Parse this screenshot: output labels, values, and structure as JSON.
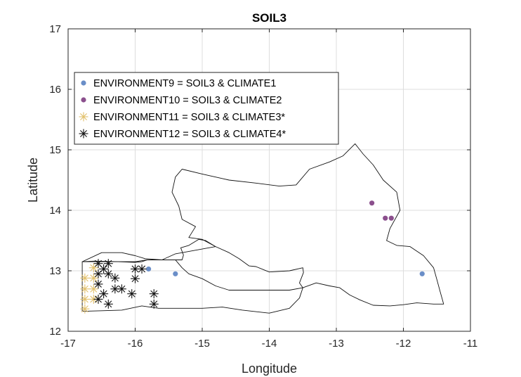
{
  "chart_data": {
    "type": "scatter",
    "title": "SOIL3",
    "xlabel": "Longitude",
    "ylabel": "Latitude",
    "xlim": [
      -17,
      -11
    ],
    "ylim": [
      12,
      17
    ],
    "xticks": [
      -17,
      -16,
      -15,
      -14,
      -13,
      -12,
      -11
    ],
    "yticks": [
      12,
      13,
      14,
      15,
      16,
      17
    ],
    "grid": true,
    "legend_position": "top-left",
    "series": [
      {
        "name": "ENVIRONMENT9 = SOIL3 & CLIMATE1",
        "marker": "dot",
        "color": "#6a8ec8",
        "points": [
          [
            -15.8,
            13.03
          ],
          [
            -15.4,
            12.95
          ],
          [
            -11.72,
            12.95
          ]
        ]
      },
      {
        "name": "ENVIRONMENT10 = SOIL3 & CLIMATE2",
        "marker": "dot",
        "color": "#8b4f8d",
        "points": [
          [
            -12.47,
            14.12
          ],
          [
            -12.27,
            13.87
          ],
          [
            -12.18,
            13.87
          ]
        ]
      },
      {
        "name": "ENVIRONMENT11 = SOIL3 & CLIMATE3*",
        "marker": "asterisk",
        "color": "#e2c06b",
        "points": [
          [
            -16.62,
            13.05
          ],
          [
            -16.75,
            12.88
          ],
          [
            -16.62,
            12.88
          ],
          [
            -16.75,
            12.7
          ],
          [
            -16.62,
            12.7
          ],
          [
            -16.75,
            12.53
          ],
          [
            -16.62,
            12.53
          ],
          [
            -16.75,
            12.37
          ]
        ]
      },
      {
        "name": "ENVIRONMENT12 = SOIL3 & CLIMATE4*",
        "marker": "asterisk",
        "color": "#111111",
        "points": [
          [
            -16.55,
            13.12
          ],
          [
            -16.4,
            13.12
          ],
          [
            -16.47,
            13.03
          ],
          [
            -16.55,
            12.95
          ],
          [
            -16.4,
            12.95
          ],
          [
            -16.3,
            12.88
          ],
          [
            -16.55,
            12.78
          ],
          [
            -16.2,
            12.7
          ],
          [
            -16.3,
            12.7
          ],
          [
            -16.47,
            12.62
          ],
          [
            -16.55,
            12.53
          ],
          [
            -16.4,
            12.45
          ],
          [
            -16.0,
            13.03
          ],
          [
            -15.9,
            13.03
          ],
          [
            -16.0,
            12.87
          ],
          [
            -16.05,
            12.62
          ],
          [
            -15.72,
            12.62
          ],
          [
            -15.72,
            12.45
          ]
        ]
      }
    ],
    "colors": {
      "axis": "#262626",
      "grid": "#dddddd",
      "border": "#000000"
    }
  }
}
